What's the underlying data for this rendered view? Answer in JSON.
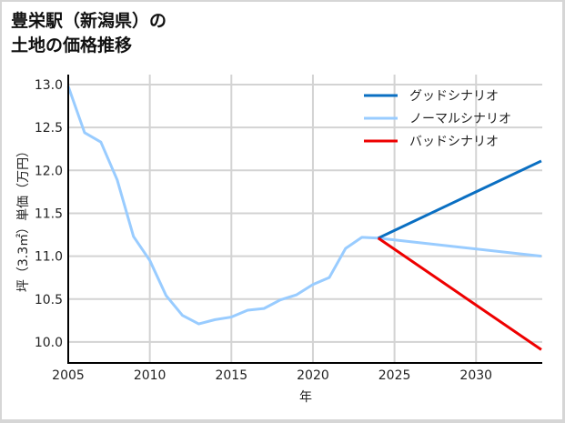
{
  "chart_data": {
    "type": "line",
    "title": "豊栄駅（新潟県）の土地の価格推移",
    "title_lines": [
      "豊栄駅（新潟県）の",
      "土地の価格推移"
    ],
    "xlabel": "年",
    "ylabel": "坪（3.3㎡）単価（万円）",
    "xlim": [
      2005,
      2034
    ],
    "ylim": [
      9.75,
      13.05
    ],
    "x_ticks": [
      "2005",
      "2010",
      "2015",
      "2020",
      "2025",
      "2030"
    ],
    "y_ticks": [
      "13.0",
      "12.5",
      "12.0",
      "11.5",
      "11.0",
      "10.5",
      "10.0"
    ],
    "grid": true,
    "legend_position": "upper right",
    "series": [
      {
        "name": "グッドシナリオ",
        "color": "#0a6fc2",
        "x": [
          2024,
          2034
        ],
        "values": [
          11.21,
          12.11
        ]
      },
      {
        "name": "ノーマルシナリオ",
        "color": "#99ccff",
        "x": [
          2005,
          2006,
          2007,
          2008,
          2009,
          2010,
          2011,
          2012,
          2013,
          2014,
          2015,
          2016,
          2017,
          2018,
          2019,
          2020,
          2021,
          2022,
          2023,
          2024,
          2034
        ],
        "values": [
          12.98,
          12.44,
          12.33,
          11.89,
          11.23,
          10.95,
          10.54,
          10.31,
          10.21,
          10.26,
          10.29,
          10.37,
          10.39,
          10.49,
          10.55,
          10.67,
          10.75,
          11.09,
          11.22,
          11.21,
          11.0
        ]
      },
      {
        "name": "バッドシナリオ",
        "color": "#ee0000",
        "x": [
          2024,
          2034
        ],
        "values": [
          11.21,
          9.91
        ]
      }
    ]
  },
  "legend": [
    {
      "label": "グッドシナリオ",
      "color": "#0a6fc2"
    },
    {
      "label": "ノーマルシナリオ",
      "color": "#99ccff"
    },
    {
      "label": "バッドシナリオ",
      "color": "#ee0000"
    }
  ]
}
